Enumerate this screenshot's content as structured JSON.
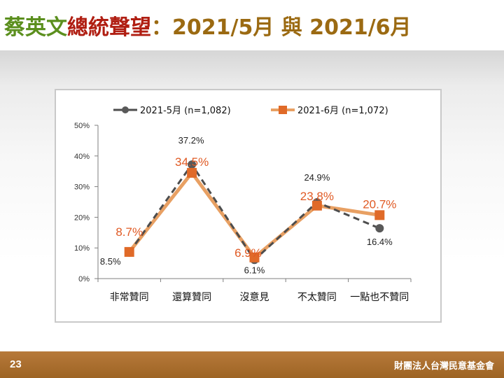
{
  "header": {
    "title_part1": "蔡英文",
    "title_part2": "總統聲望",
    "title_colon": "：",
    "title_part3": "2021/5月 與 2021/6月"
  },
  "colors": {
    "series_may": "#4d4d4d",
    "series_june": "#e06a28",
    "june_line": "#e8a063",
    "label_may": "#222222",
    "label_june": "#e05a24",
    "footer": "#a96f2b"
  },
  "chart_data": {
    "type": "line",
    "categories": [
      "非常贊同",
      "還算贊同",
      "沒意見",
      "不太贊同",
      "一點也不贊同"
    ],
    "series": [
      {
        "name": "2021-5月 (n=1,082)",
        "values": [
          8.5,
          37.2,
          6.1,
          24.9,
          16.4
        ],
        "labels": [
          "8.5%",
          "37.2%",
          "6.1%",
          "24.9%",
          "16.4%"
        ]
      },
      {
        "name": "2021-6月 (n=1,072)",
        "values": [
          8.7,
          34.5,
          6.9,
          23.8,
          20.7
        ],
        "labels": [
          "8.7%",
          "34.5%",
          "6.9%",
          "23.8%",
          "20.7%"
        ]
      }
    ],
    "ylim": [
      0,
      50
    ],
    "yticks": [
      "0%",
      "10%",
      "20%",
      "30%",
      "40%",
      "50%"
    ],
    "ytick_values": [
      0,
      10,
      20,
      30,
      40,
      50
    ],
    "legend_position": "top",
    "grid": false
  },
  "footer": {
    "page_number": "23",
    "organization": "財團法人台灣民意基金會"
  }
}
